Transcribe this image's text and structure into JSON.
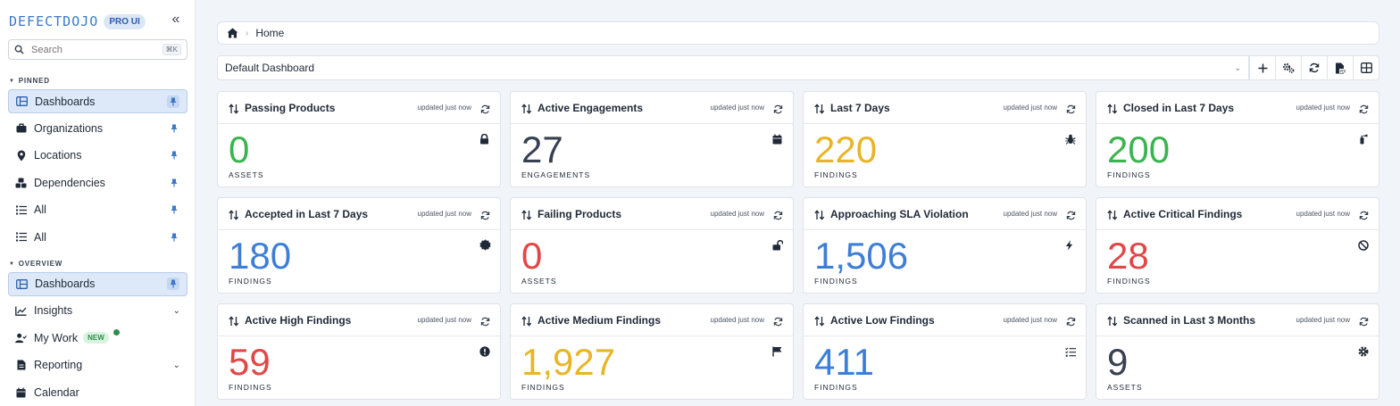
{
  "brand": {
    "logo_text": "DEFECTDOJO",
    "badge": "PRO UI"
  },
  "search": {
    "placeholder": "Search",
    "shortcut": "⌘K"
  },
  "sidebar": {
    "pinned_label": "PINNED",
    "pinned_items": [
      {
        "label": "Dashboards",
        "icon": "dashboard-icon",
        "active": true
      },
      {
        "label": "Organizations",
        "icon": "briefcase-icon"
      },
      {
        "label": "Locations",
        "icon": "location-pin-icon"
      },
      {
        "label": "Dependencies",
        "icon": "cubes-icon"
      },
      {
        "label": "All",
        "icon": "list-icon"
      },
      {
        "label": "All",
        "icon": "list-icon"
      }
    ],
    "overview_label": "OVERVIEW",
    "overview_items": [
      {
        "label": "Dashboards",
        "icon": "dashboard-icon",
        "active": true
      },
      {
        "label": "Insights",
        "icon": "chart-line-icon"
      },
      {
        "label": "My Work",
        "icon": "user-check-icon",
        "badge": "NEW"
      },
      {
        "label": "Reporting",
        "icon": "file-icon"
      },
      {
        "label": "Calendar",
        "icon": "calendar-icon"
      }
    ]
  },
  "breadcrumb": {
    "current": "Home"
  },
  "dashboard": {
    "selected": "Default Dashboard"
  },
  "colors": {
    "green": "#3bb44f",
    "dark": "#374151",
    "yellow": "#e9b528",
    "blue": "#3d7fd6",
    "red": "#e04848",
    "accent": "#3d78c9"
  },
  "cards": [
    {
      "title": "Passing Products",
      "updated": "updated just now",
      "value": "0",
      "unit": "ASSETS",
      "color": "green",
      "icon": "lock-icon"
    },
    {
      "title": "Active Engagements",
      "updated": "updated just now",
      "value": "27",
      "unit": "ENGAGEMENTS",
      "color": "dark",
      "icon": "calendar-icon"
    },
    {
      "title": "Last 7 Days",
      "updated": "updated just now",
      "value": "220",
      "unit": "FINDINGS",
      "color": "yellow",
      "icon": "bug-icon"
    },
    {
      "title": "Closed in Last 7 Days",
      "updated": "updated just now",
      "value": "200",
      "unit": "FINDINGS",
      "color": "green",
      "icon": "fire-extinguisher-icon"
    },
    {
      "title": "Accepted in Last 7 Days",
      "updated": "updated just now",
      "value": "180",
      "unit": "FINDINGS",
      "color": "blue",
      "icon": "certificate-icon"
    },
    {
      "title": "Failing Products",
      "updated": "updated just now",
      "value": "0",
      "unit": "ASSETS",
      "color": "red",
      "icon": "unlock-icon"
    },
    {
      "title": "Approaching SLA Violation",
      "updated": "updated just now",
      "value": "1,506",
      "unit": "FINDINGS",
      "color": "blue",
      "icon": "bolt-icon"
    },
    {
      "title": "Active Critical Findings",
      "updated": "updated just now",
      "value": "28",
      "unit": "FINDINGS",
      "color": "red",
      "icon": "ban-icon"
    },
    {
      "title": "Active High Findings",
      "updated": "updated just now",
      "value": "59",
      "unit": "FINDINGS",
      "color": "red",
      "icon": "exclamation-circle-icon"
    },
    {
      "title": "Active Medium Findings",
      "updated": "updated just now",
      "value": "1,927",
      "unit": "FINDINGS",
      "color": "yellow",
      "icon": "flag-icon"
    },
    {
      "title": "Active Low Findings",
      "updated": "updated just now",
      "value": "411",
      "unit": "FINDINGS",
      "color": "blue",
      "icon": "list-check-icon"
    },
    {
      "title": "Scanned in Last 3 Months",
      "updated": "updated just now",
      "value": "9",
      "unit": "ASSETS",
      "color": "dark",
      "icon": "gear-icon"
    }
  ]
}
